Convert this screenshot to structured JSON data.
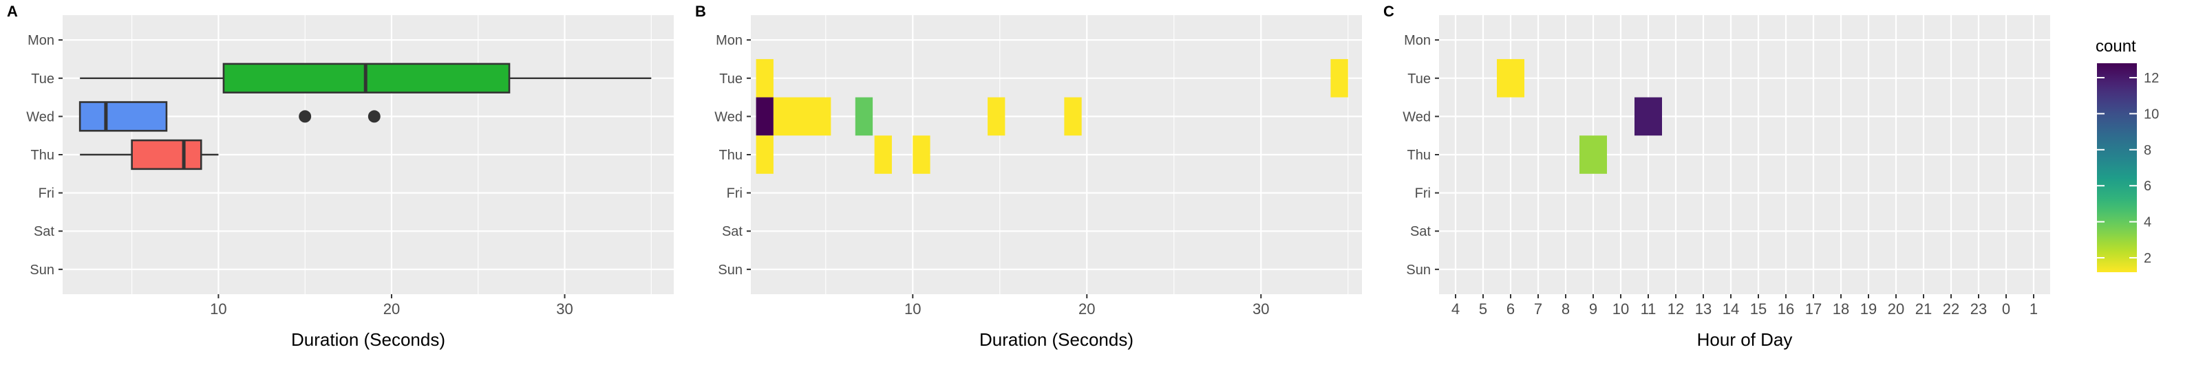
{
  "colors": {
    "panel_bg": "#ebebeb",
    "grid": "#ffffff",
    "text": "#000000",
    "tick_text": "#4d4d4d",
    "axis_tick": "#333333",
    "box_outline": "#333333"
  },
  "chart_data": [
    {
      "id": "A",
      "panel_label": "A",
      "type": "boxplot",
      "xlabel": "Duration (Seconds)",
      "ylabel": "",
      "xlim": [
        1,
        36.3
      ],
      "x_ticks": [
        10,
        20,
        30
      ],
      "x_minor": [
        5,
        15,
        25,
        35
      ],
      "categories": [
        "Mon",
        "Tue",
        "Wed",
        "Thu",
        "Fri",
        "Sat",
        "Sun"
      ],
      "grid": true,
      "boxes": [
        {
          "category": "Tue",
          "min": 2,
          "q1": 10.3,
          "median": 18.5,
          "q3": 26.8,
          "max": 35,
          "outliers": [],
          "color": "#22b230"
        },
        {
          "category": "Wed",
          "min": 2,
          "q1": 2,
          "median": 3.5,
          "q3": 7,
          "max": 7,
          "outliers": [
            15,
            19
          ],
          "color": "#5a8ff1"
        },
        {
          "category": "Thu",
          "min": 2,
          "q1": 5,
          "median": 8,
          "q3": 9,
          "max": 10,
          "outliers": [],
          "color": "#f8635c"
        }
      ]
    },
    {
      "id": "B",
      "panel_label": "B",
      "type": "heatmap",
      "xlabel": "Duration (Seconds)",
      "ylabel": "",
      "xlim": [
        0.7,
        35.8
      ],
      "x_ticks": [
        10,
        20,
        30
      ],
      "x_minor": [
        5,
        15,
        25,
        35
      ],
      "categories": [
        "Mon",
        "Tue",
        "Wed",
        "Thu",
        "Fri",
        "Sat",
        "Sun"
      ],
      "grid": true,
      "tiles": [
        {
          "category": "Tue",
          "x0": 1.0,
          "x1": 2.0,
          "count": 1
        },
        {
          "category": "Tue",
          "x0": 34.0,
          "x1": 35.0,
          "count": 1
        },
        {
          "category": "Wed",
          "x0": 1.0,
          "x1": 2.0,
          "count": 13
        },
        {
          "category": "Wed",
          "x0": 2.0,
          "x1": 5.3,
          "count": 1
        },
        {
          "category": "Wed",
          "x0": 6.7,
          "x1": 7.7,
          "count": 4
        },
        {
          "category": "Wed",
          "x0": 14.3,
          "x1": 15.3,
          "count": 1
        },
        {
          "category": "Wed",
          "x0": 18.7,
          "x1": 19.7,
          "count": 1
        },
        {
          "category": "Thu",
          "x0": 1.0,
          "x1": 2.0,
          "count": 1
        },
        {
          "category": "Thu",
          "x0": 7.8,
          "x1": 8.8,
          "count": 1
        },
        {
          "category": "Thu",
          "x0": 10.0,
          "x1": 11.0,
          "count": 1
        }
      ]
    },
    {
      "id": "C",
      "panel_label": "C",
      "type": "heatmap",
      "xlabel": "Hour of Day",
      "ylabel": "",
      "x_categories": [
        "4",
        "5",
        "6",
        "7",
        "8",
        "9",
        "10",
        "11",
        "12",
        "13",
        "14",
        "15",
        "16",
        "17",
        "18",
        "19",
        "20",
        "21",
        "22",
        "23",
        "0",
        "1"
      ],
      "categories": [
        "Mon",
        "Tue",
        "Wed",
        "Thu",
        "Fri",
        "Sat",
        "Sun"
      ],
      "grid": true,
      "tiles": [
        {
          "category": "Tue",
          "hour": "6",
          "count": 1
        },
        {
          "category": "Wed",
          "hour": "11",
          "count": 12
        },
        {
          "category": "Thu",
          "hour": "9",
          "count": 3
        }
      ]
    }
  ],
  "legend": {
    "title": "count",
    "position": "right",
    "range": [
      1.2,
      12.8
    ],
    "breaks": [
      2,
      4,
      6,
      8,
      10,
      12
    ],
    "labels": [
      "2",
      "4",
      "6",
      "8",
      "10",
      "12"
    ],
    "colormap": "viridis-reversed"
  }
}
